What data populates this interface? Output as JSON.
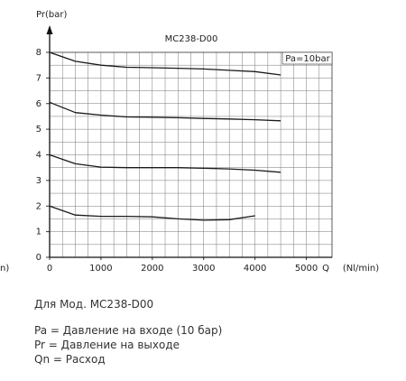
{
  "chart_data": {
    "type": "line",
    "title": "MC238-D00",
    "annotation": "Pa=10bar",
    "ylabel": "Pr(bar)",
    "xlabel": "Q",
    "xunit": "(Nl/min)",
    "left_fragment": "n)",
    "x": [
      0,
      500,
      1000,
      1500,
      2000,
      2500,
      3000,
      3500,
      4000,
      4500
    ],
    "series": [
      {
        "color": "#1a1a1a",
        "values": [
          8.0,
          7.65,
          7.5,
          7.42,
          7.4,
          7.38,
          7.35,
          7.3,
          7.25,
          7.12
        ]
      },
      {
        "color": "#1a1a1a",
        "values": [
          6.05,
          5.65,
          5.55,
          5.48,
          5.47,
          5.45,
          5.42,
          5.4,
          5.37,
          5.33
        ]
      },
      {
        "color": "#1a1a1a",
        "values": [
          4.0,
          3.65,
          3.52,
          3.5,
          3.5,
          3.5,
          3.48,
          3.45,
          3.4,
          3.32
        ]
      },
      {
        "color": "#1a1a1a",
        "values": [
          2.0,
          1.65,
          1.6,
          1.6,
          1.58,
          1.5,
          1.45,
          1.47,
          1.62,
          null
        ]
      }
    ],
    "xlim": [
      0,
      5500
    ],
    "xticks": [
      0,
      1000,
      2000,
      3000,
      4000,
      5000
    ],
    "ylim": [
      0,
      8
    ],
    "yticks": [
      0,
      1,
      2,
      3,
      4,
      5,
      6,
      7,
      8
    ],
    "grid": true
  },
  "notes": {
    "model": "Для Мод. МС238-D00",
    "lines": [
      "Pa = Давление на входе (10 бар)",
      "Pr = Давление на выходе",
      "Qn = Расход"
    ]
  }
}
